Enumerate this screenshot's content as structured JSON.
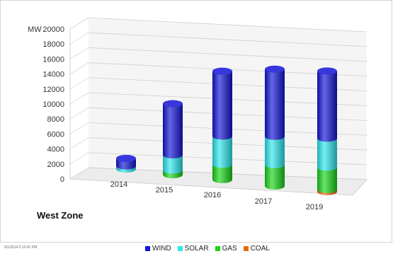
{
  "chart_data": {
    "type": "bar",
    "subtype": "3d-stacked-cylinder",
    "title": "West Zone",
    "ylabel": "MW",
    "ylim": [
      0,
      20000
    ],
    "yticks": [
      0,
      2000,
      4000,
      6000,
      8000,
      10000,
      12000,
      14000,
      16000,
      18000,
      20000
    ],
    "grid": true,
    "legend_position": "bottom",
    "categories": [
      "2014",
      "2015",
      "2016",
      "2017",
      "2019"
    ],
    "series": [
      {
        "name": "COAL",
        "color": "#e36c0a",
        "values": [
          0,
          0,
          0,
          0,
          300
        ]
      },
      {
        "name": "GAS",
        "color": "#16d616",
        "values": [
          0,
          600,
          2000,
          2800,
          2900
        ]
      },
      {
        "name": "SOLAR",
        "color": "#2ae8ee",
        "values": [
          400,
          2000,
          3700,
          3700,
          3800
        ]
      },
      {
        "name": "WIND",
        "color": "#1214d6",
        "values": [
          1000,
          6700,
          8500,
          8800,
          8800
        ]
      }
    ]
  },
  "legend": [
    {
      "label": "WIND",
      "color": "#1214d6"
    },
    {
      "label": "SOLAR",
      "color": "#2ae8ee"
    },
    {
      "label": "GAS",
      "color": "#16d616"
    },
    {
      "label": "COAL",
      "color": "#e36c0a"
    }
  ],
  "footer": {
    "zone_title": "West Zone",
    "timestamp": "6/1/2014 2:10:41 PM"
  }
}
